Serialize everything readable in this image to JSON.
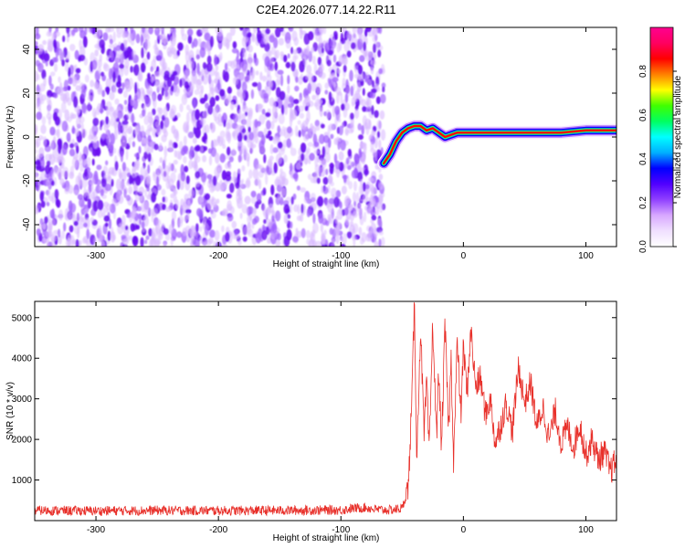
{
  "figure": {
    "title": "C2E4.2026.077.14.22.R11"
  },
  "chart_data": [
    {
      "type": "heatmap",
      "title": "C2E4.2026.077.14.22.R11",
      "xlabel": "Height of straight line (km)",
      "ylabel": "Frequency (Hz)",
      "xlim": [
        -350,
        125
      ],
      "ylim": [
        -50,
        50
      ],
      "xticks": [
        -300,
        -200,
        -100,
        0,
        100
      ],
      "yticks": [
        -40,
        -20,
        0,
        20,
        40
      ],
      "colorbar": {
        "label": "Normalized spectral amplitude",
        "range": [
          0,
          1
        ],
        "ticks": [
          "0.0",
          "0.2",
          "0.4",
          "0.6",
          "0.8"
        ],
        "colormap": [
          "#ffffff",
          "#f0e0ff",
          "#d8a8ff",
          "#9040ff",
          "#5000ff",
          "#0000ff",
          "#00b0ff",
          "#00ffff",
          "#00ff60",
          "#40ff00",
          "#ffff00",
          "#ff8000",
          "#ff0000",
          "#ff0060",
          "#ff0090"
        ]
      },
      "noise_region": {
        "x_range": [
          -350,
          -65
        ],
        "freq_range": [
          -50,
          50
        ],
        "amplitude_range": [
          0.0,
          0.2
        ]
      },
      "signal_ridge": {
        "x": [
          -65,
          -60,
          -55,
          -50,
          -45,
          -40,
          -35,
          -30,
          -25,
          -20,
          -15,
          -10,
          -5,
          0,
          20,
          40,
          60,
          80,
          100,
          125
        ],
        "frequency": [
          -12,
          -8,
          -2,
          2,
          4,
          5,
          5,
          3,
          4,
          2,
          0,
          1,
          2,
          2,
          2,
          2,
          2,
          2,
          3,
          3
        ],
        "peak_amplitude": 0.85
      }
    },
    {
      "type": "line",
      "xlabel": "Height of straight line (km)",
      "ylabel": "SNR (10 * v/v)",
      "xlim": [
        -350,
        125
      ],
      "ylim": [
        0,
        5400
      ],
      "xticks": [
        -300,
        -200,
        -100,
        0,
        100
      ],
      "yticks": [
        1000,
        2000,
        3000,
        4000,
        5000
      ],
      "series": [
        {
          "color": "#e8302a",
          "x": [
            -350,
            -300,
            -250,
            -200,
            -150,
            -100,
            -90,
            -80,
            -70,
            -60,
            -50,
            -45,
            -42,
            -40,
            -38,
            -35,
            -32,
            -30,
            -28,
            -25,
            -22,
            -20,
            -18,
            -15,
            -12,
            -10,
            -8,
            -5,
            -2,
            0,
            3,
            6,
            10,
            14,
            18,
            22,
            26,
            30,
            35,
            40,
            45,
            50,
            55,
            60,
            65,
            70,
            75,
            80,
            85,
            90,
            95,
            100,
            105,
            110,
            115,
            120,
            125
          ],
          "y": [
            250,
            240,
            250,
            245,
            250,
            260,
            300,
            320,
            270,
            260,
            300,
            800,
            3000,
            5400,
            1500,
            4800,
            2000,
            3500,
            1600,
            4900,
            2000,
            3800,
            1700,
            4800,
            2200,
            4000,
            1500,
            4400,
            2600,
            4300,
            3100,
            4700,
            3300,
            3500,
            2600,
            3000,
            1900,
            2300,
            2900,
            2200,
            3800,
            2900,
            3400,
            2300,
            2800,
            2000,
            2700,
            1900,
            2300,
            1800,
            2400,
            1600,
            2000,
            1500,
            1700,
            1200,
            1500
          ],
          "noise_band": 120
        }
      ]
    }
  ]
}
